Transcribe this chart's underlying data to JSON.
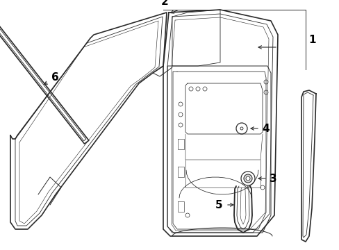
{
  "background_color": "#ffffff",
  "line_color": "#2a2a2a",
  "label_color": "#000000",
  "figsize": [
    4.89,
    3.6
  ],
  "dpi": 100,
  "lw_main": 1.2,
  "lw_inner": 0.6,
  "lw_detail": 0.7
}
